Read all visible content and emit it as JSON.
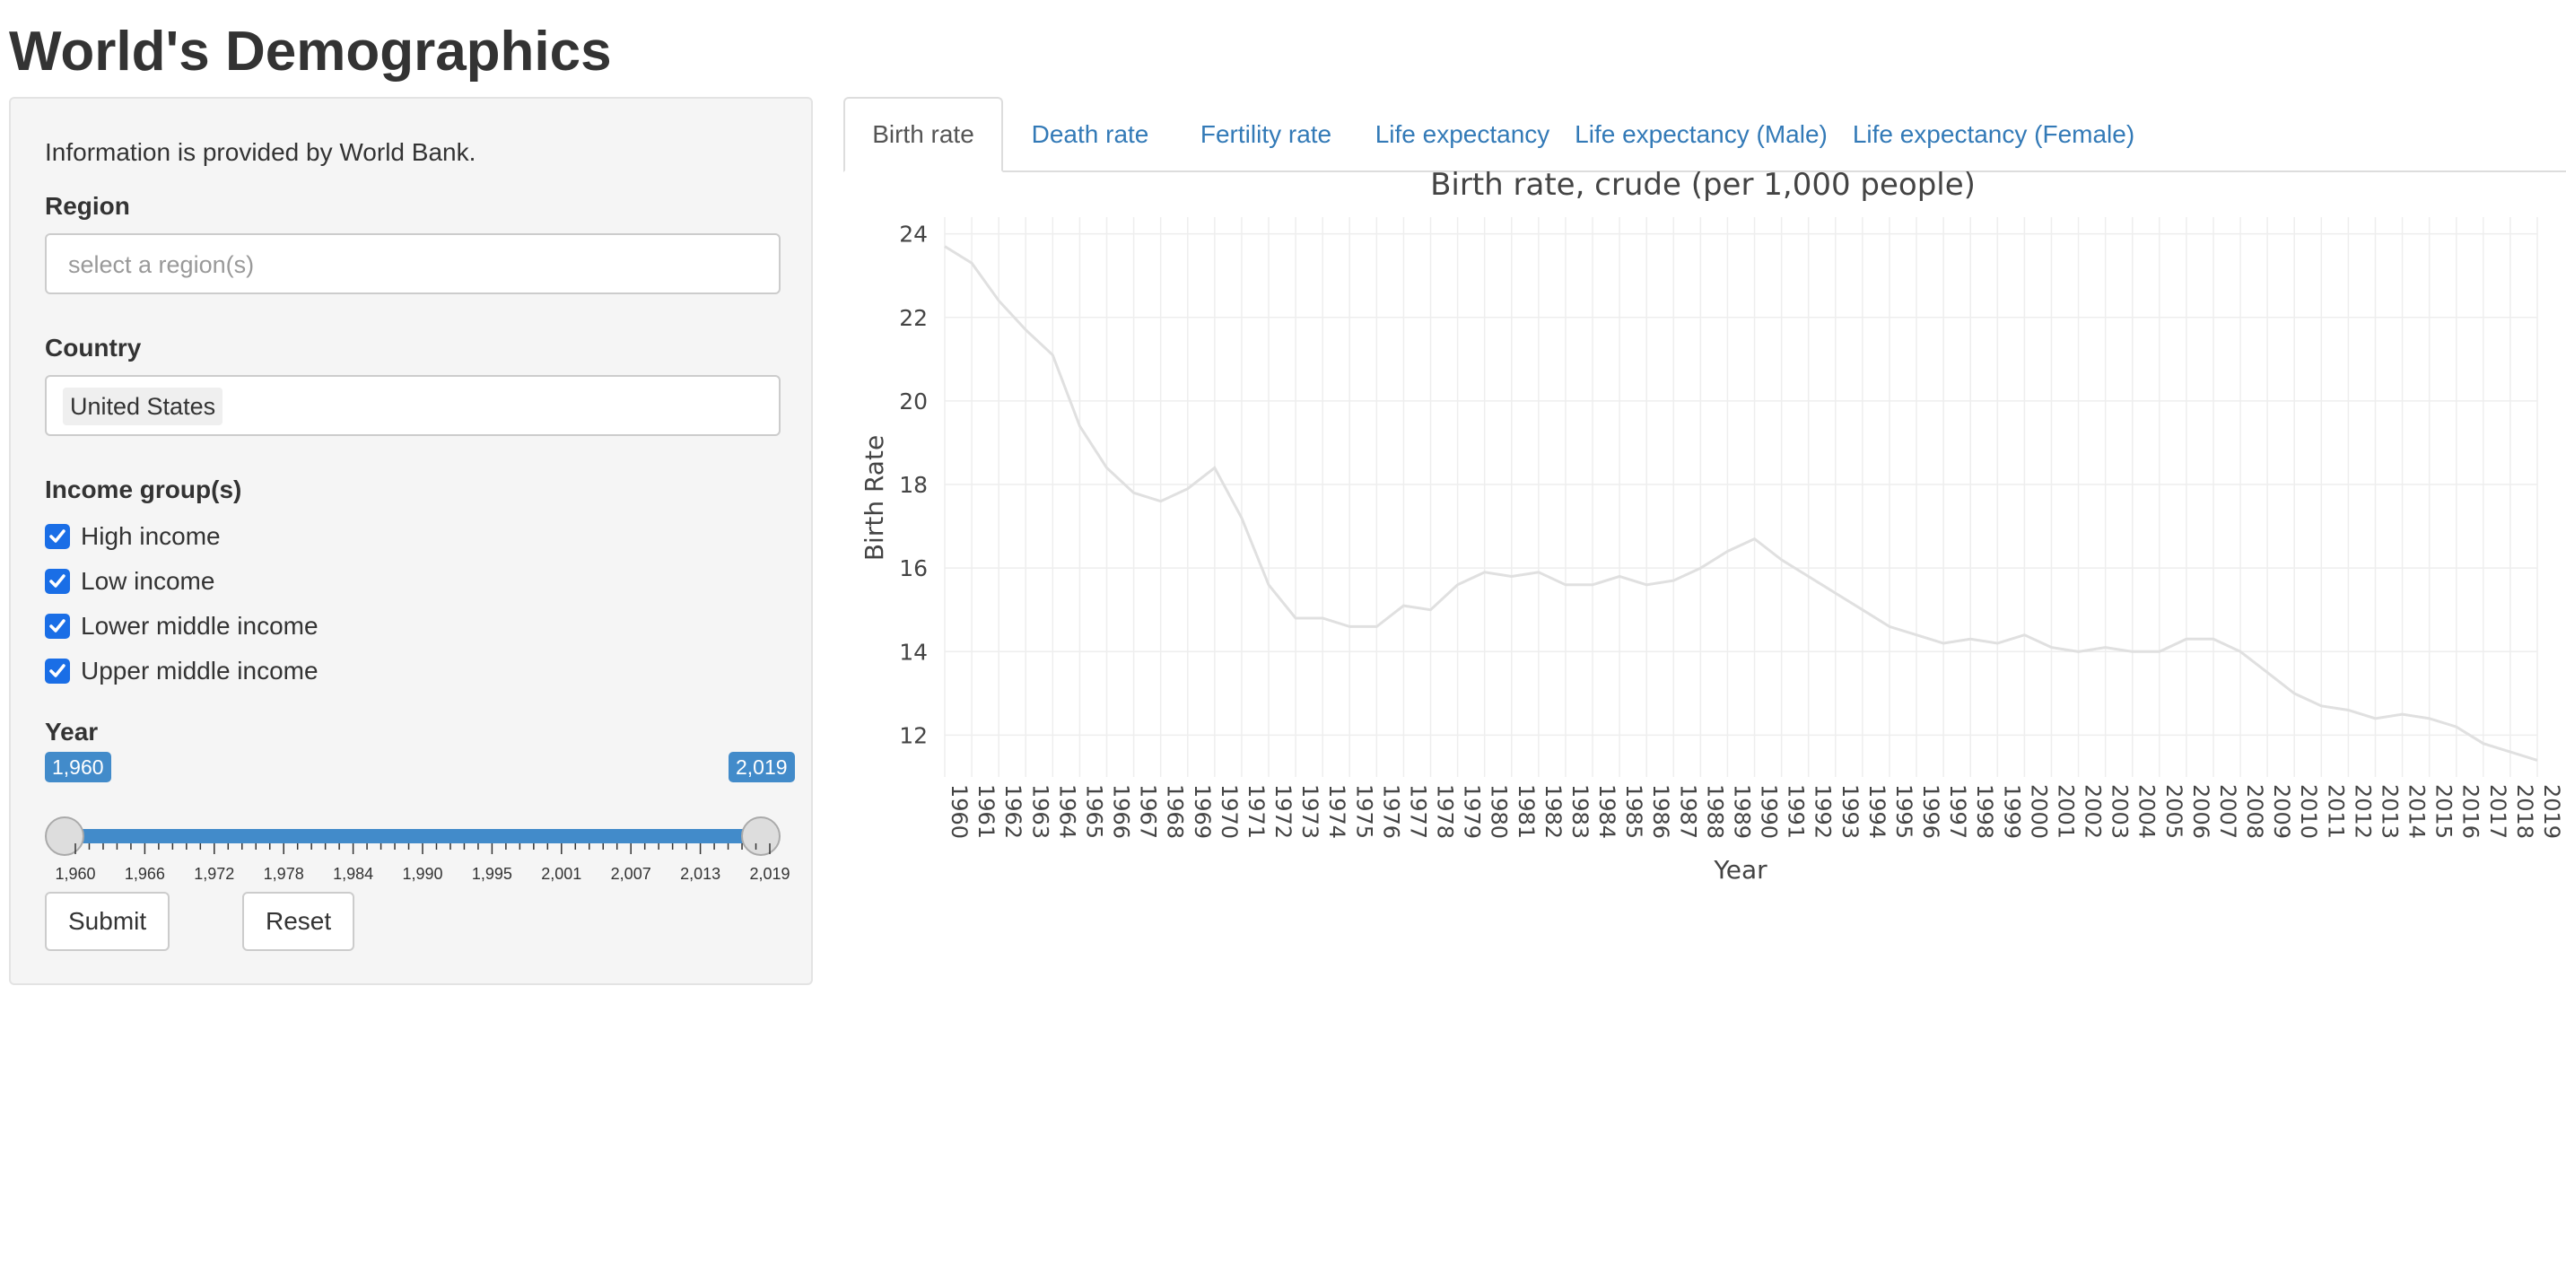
{
  "page": {
    "title": "World's Demographics"
  },
  "sidebar": {
    "info": "Information is provided by World Bank.",
    "region": {
      "label": "Region",
      "placeholder": "select a region(s)"
    },
    "country": {
      "label": "Country",
      "selected": "United States"
    },
    "income": {
      "label": "Income group(s)",
      "options": [
        {
          "label": "High income",
          "checked": true
        },
        {
          "label": "Low income",
          "checked": true
        },
        {
          "label": "Lower middle income",
          "checked": true
        },
        {
          "label": "Upper middle income",
          "checked": true
        }
      ]
    },
    "year": {
      "label": "Year",
      "min_label": "1,960",
      "max_label": "2,019",
      "range": [
        1960,
        2019
      ],
      "selected": [
        1960,
        2019
      ],
      "ticks": [
        "1,960",
        "1,966",
        "1,972",
        "1,978",
        "1,984",
        "1,990",
        "1,995",
        "2,001",
        "2,007",
        "2,013",
        "2,019"
      ]
    },
    "submit_label": "Submit",
    "reset_label": "Reset"
  },
  "tabs": [
    {
      "label": "Birth rate",
      "active": true
    },
    {
      "label": "Death rate",
      "active": false
    },
    {
      "label": "Fertility rate",
      "active": false
    },
    {
      "label": "Life expectancy",
      "active": false
    },
    {
      "label": "Life expectancy (Male)",
      "active": false
    },
    {
      "label": "Life expectancy (Female)",
      "active": false
    }
  ],
  "colors": {
    "accent": "#428bca",
    "checkbox": "#1a6ee6",
    "link": "#337ab7",
    "line": "#e0e0e0"
  },
  "chart_data": {
    "type": "line",
    "title": "Birth rate, crude (per 1,000 people)",
    "xlabel": "Year",
    "ylabel": "Birth Rate",
    "ylim": [
      11,
      24.4
    ],
    "yticks": [
      12,
      14,
      16,
      18,
      20,
      22,
      24
    ],
    "grid": true,
    "x": [
      1960,
      1961,
      1962,
      1963,
      1964,
      1965,
      1966,
      1967,
      1968,
      1969,
      1970,
      1971,
      1972,
      1973,
      1974,
      1975,
      1976,
      1977,
      1978,
      1979,
      1980,
      1981,
      1982,
      1983,
      1984,
      1985,
      1986,
      1987,
      1988,
      1989,
      1990,
      1991,
      1992,
      1993,
      1994,
      1995,
      1996,
      1997,
      1998,
      1999,
      2000,
      2001,
      2002,
      2003,
      2004,
      2005,
      2006,
      2007,
      2008,
      2009,
      2010,
      2011,
      2012,
      2013,
      2014,
      2015,
      2016,
      2017,
      2018,
      2019
    ],
    "xtick_labels": [
      "1960",
      "1961",
      "1962",
      "1963",
      "1964",
      "1965",
      "1966",
      "1967",
      "1968",
      "1969",
      "1970",
      "1971",
      "1972",
      "1973",
      "1974",
      "1975",
      "1976",
      "1977",
      "1978",
      "1979",
      "1980",
      "1981",
      "1982",
      "1983",
      "1984",
      "1985",
      "1986",
      "1987",
      "1988",
      "1989",
      "1990",
      "1991",
      "1992",
      "1993",
      "1994",
      "1995",
      "1996",
      "1997",
      "1998",
      "1999",
      "2000",
      "2001",
      "2002",
      "2003",
      "2004",
      "2005",
      "2006",
      "2007",
      "2008",
      "2009",
      "2010",
      "2011",
      "2012",
      "2013",
      "2014",
      "2015",
      "2016",
      "2017",
      "2018",
      "2019"
    ],
    "series": [
      {
        "values": [
          23.7,
          23.3,
          22.4,
          21.7,
          21.1,
          19.4,
          18.4,
          17.8,
          17.6,
          17.9,
          18.4,
          17.2,
          15.6,
          14.8,
          14.8,
          14.6,
          14.6,
          15.1,
          15.0,
          15.6,
          15.9,
          15.8,
          15.9,
          15.6,
          15.6,
          15.8,
          15.6,
          15.7,
          16.0,
          16.4,
          16.7,
          16.2,
          15.8,
          15.4,
          15.0,
          14.6,
          14.4,
          14.2,
          14.3,
          14.2,
          14.4,
          14.1,
          14.0,
          14.1,
          14.0,
          14.0,
          14.3,
          14.3,
          14.0,
          13.5,
          13.0,
          12.7,
          12.6,
          12.4,
          12.5,
          12.4,
          12.2,
          11.8,
          11.6,
          11.4
        ]
      }
    ]
  }
}
